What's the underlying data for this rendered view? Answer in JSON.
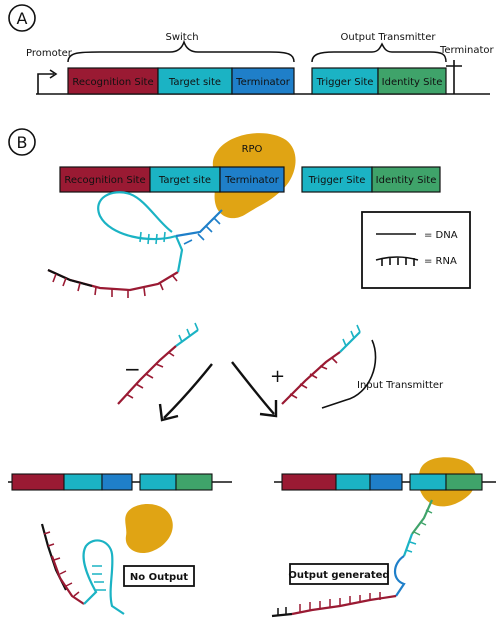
{
  "panel_a": {
    "letter": "A",
    "promoter_label": "Promoter",
    "switch_label": "Switch",
    "output_label": "Output Transmitter",
    "terminator_label": "Terminator",
    "segments": [
      {
        "label": "Recognition Site",
        "color": "#9a1a33"
      },
      {
        "label": "Target site",
        "color": "#1bb3c4"
      },
      {
        "label": "Terminator",
        "color": "#1f7fc9"
      },
      {
        "label": "Trigger Site",
        "color": "#1bb3c4"
      },
      {
        "label": "Identity Site",
        "color": "#3fa36a"
      }
    ]
  },
  "panel_b": {
    "letter": "B",
    "rpo_label": "RPO",
    "legend": {
      "dna_label": "= DNA",
      "rna_label": "= RNA"
    },
    "minus_sign": "−",
    "plus_sign": "+",
    "input_label": "Input Transmitter",
    "no_output_label": "No Output",
    "output_generated_label": "Output generated",
    "colors": {
      "rpo": "#e0a414",
      "dark_red": "#9a1a33",
      "cyan": "#1bb3c4",
      "blue": "#1f7fc9",
      "green": "#3fa36a",
      "black": "#111111"
    }
  }
}
